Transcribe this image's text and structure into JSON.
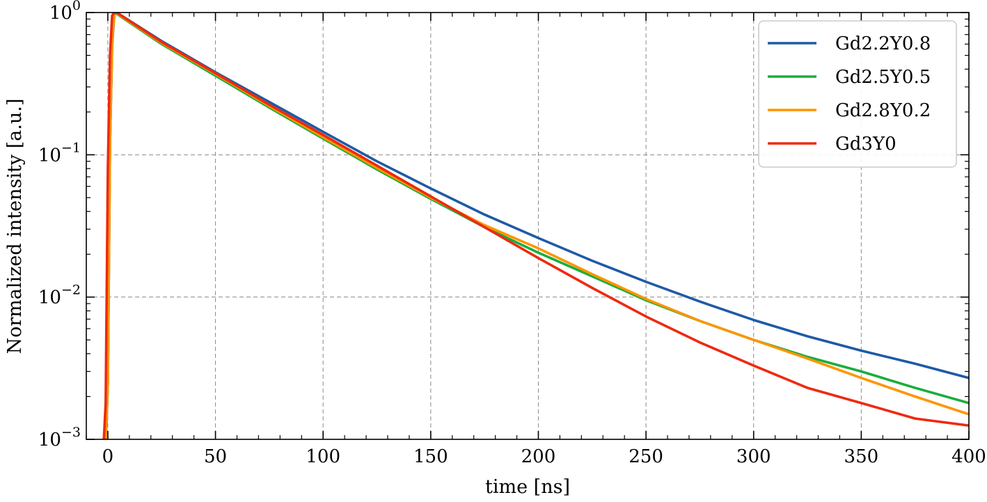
{
  "chart_data": {
    "type": "line",
    "title": "",
    "xlabel": "time [ns]",
    "ylabel": "Normalized intensity [a.u.]",
    "xlim": [
      -10,
      400
    ],
    "ylim": [
      0.001,
      1
    ],
    "yscale": "log",
    "grid": true,
    "legend_position": "top-right",
    "x_ticks": [
      0,
      50,
      100,
      150,
      200,
      250,
      300,
      350,
      400
    ],
    "x_tick_labels": [
      "0",
      "50",
      "100",
      "150",
      "200",
      "250",
      "300",
      "350",
      "400"
    ],
    "y_ticks": [
      0.001,
      0.01,
      0.1,
      1
    ],
    "y_tick_labels": [
      {
        "base": "10",
        "exp": "−3"
      },
      {
        "base": "10",
        "exp": "−2"
      },
      {
        "base": "10",
        "exp": "−1"
      },
      {
        "base": "10",
        "exp": "0"
      }
    ],
    "series": [
      {
        "name": "Gd2.2Y0.8",
        "color": "#1f5aa6",
        "points": [
          [
            -1,
            0.0009
          ],
          [
            0,
            0.0025
          ],
          [
            1,
            0.12
          ],
          [
            2,
            0.6
          ],
          [
            3,
            0.97
          ],
          [
            4,
            1.0
          ],
          [
            5,
            0.98
          ],
          [
            25,
            0.63
          ],
          [
            50,
            0.38
          ],
          [
            75,
            0.235
          ],
          [
            100,
            0.145
          ],
          [
            125,
            0.09
          ],
          [
            150,
            0.058
          ],
          [
            175,
            0.038
          ],
          [
            200,
            0.026
          ],
          [
            225,
            0.018
          ],
          [
            250,
            0.0128
          ],
          [
            275,
            0.0093
          ],
          [
            300,
            0.0069
          ],
          [
            325,
            0.0053
          ],
          [
            350,
            0.0042
          ],
          [
            375,
            0.0034
          ],
          [
            400,
            0.0027
          ]
        ]
      },
      {
        "name": "Gd2.5Y0.5",
        "color": "#1aae3c",
        "points": [
          [
            -1,
            0.0009
          ],
          [
            0,
            0.0025
          ],
          [
            1,
            0.12
          ],
          [
            2,
            0.6
          ],
          [
            3,
            0.96
          ],
          [
            4,
            0.99
          ],
          [
            5,
            0.96
          ],
          [
            25,
            0.6
          ],
          [
            50,
            0.36
          ],
          [
            75,
            0.215
          ],
          [
            100,
            0.13
          ],
          [
            125,
            0.079
          ],
          [
            150,
            0.049
          ],
          [
            175,
            0.031
          ],
          [
            200,
            0.0205
          ],
          [
            225,
            0.014
          ],
          [
            250,
            0.0095
          ],
          [
            275,
            0.0068
          ],
          [
            300,
            0.005
          ],
          [
            325,
            0.0038
          ],
          [
            350,
            0.003
          ],
          [
            375,
            0.0023
          ],
          [
            400,
            0.0018
          ]
        ]
      },
      {
        "name": "Gd2.8Y0.2",
        "color": "#ff9500",
        "points": [
          [
            -1,
            0.0009
          ],
          [
            0,
            0.0025
          ],
          [
            1,
            0.12
          ],
          [
            2,
            0.62
          ],
          [
            3,
            0.97
          ],
          [
            4,
            1.0
          ],
          [
            5,
            0.97
          ],
          [
            25,
            0.61
          ],
          [
            50,
            0.37
          ],
          [
            75,
            0.22
          ],
          [
            100,
            0.133
          ],
          [
            125,
            0.081
          ],
          [
            150,
            0.05
          ],
          [
            175,
            0.032
          ],
          [
            200,
            0.022
          ],
          [
            225,
            0.0145
          ],
          [
            250,
            0.0097
          ],
          [
            275,
            0.0068
          ],
          [
            300,
            0.005
          ],
          [
            325,
            0.0037
          ],
          [
            350,
            0.0027
          ],
          [
            375,
            0.002
          ],
          [
            400,
            0.0015
          ]
        ]
      },
      {
        "name": "Gd3Y0",
        "color": "#ee2a10",
        "points": [
          [
            -2,
            0.0009
          ],
          [
            -1,
            0.0018
          ],
          [
            0,
            0.08
          ],
          [
            1,
            0.5
          ],
          [
            2,
            0.95
          ],
          [
            3,
            1.0
          ],
          [
            4,
            1.0
          ],
          [
            5,
            0.98
          ],
          [
            25,
            0.62
          ],
          [
            50,
            0.375
          ],
          [
            75,
            0.225
          ],
          [
            100,
            0.138
          ],
          [
            125,
            0.084
          ],
          [
            150,
            0.051
          ],
          [
            175,
            0.031
          ],
          [
            200,
            0.0188
          ],
          [
            225,
            0.0116
          ],
          [
            250,
            0.0073
          ],
          [
            275,
            0.0048
          ],
          [
            300,
            0.0033
          ],
          [
            325,
            0.0023
          ],
          [
            350,
            0.0018
          ],
          [
            375,
            0.0014
          ],
          [
            400,
            0.00125
          ]
        ]
      }
    ]
  }
}
